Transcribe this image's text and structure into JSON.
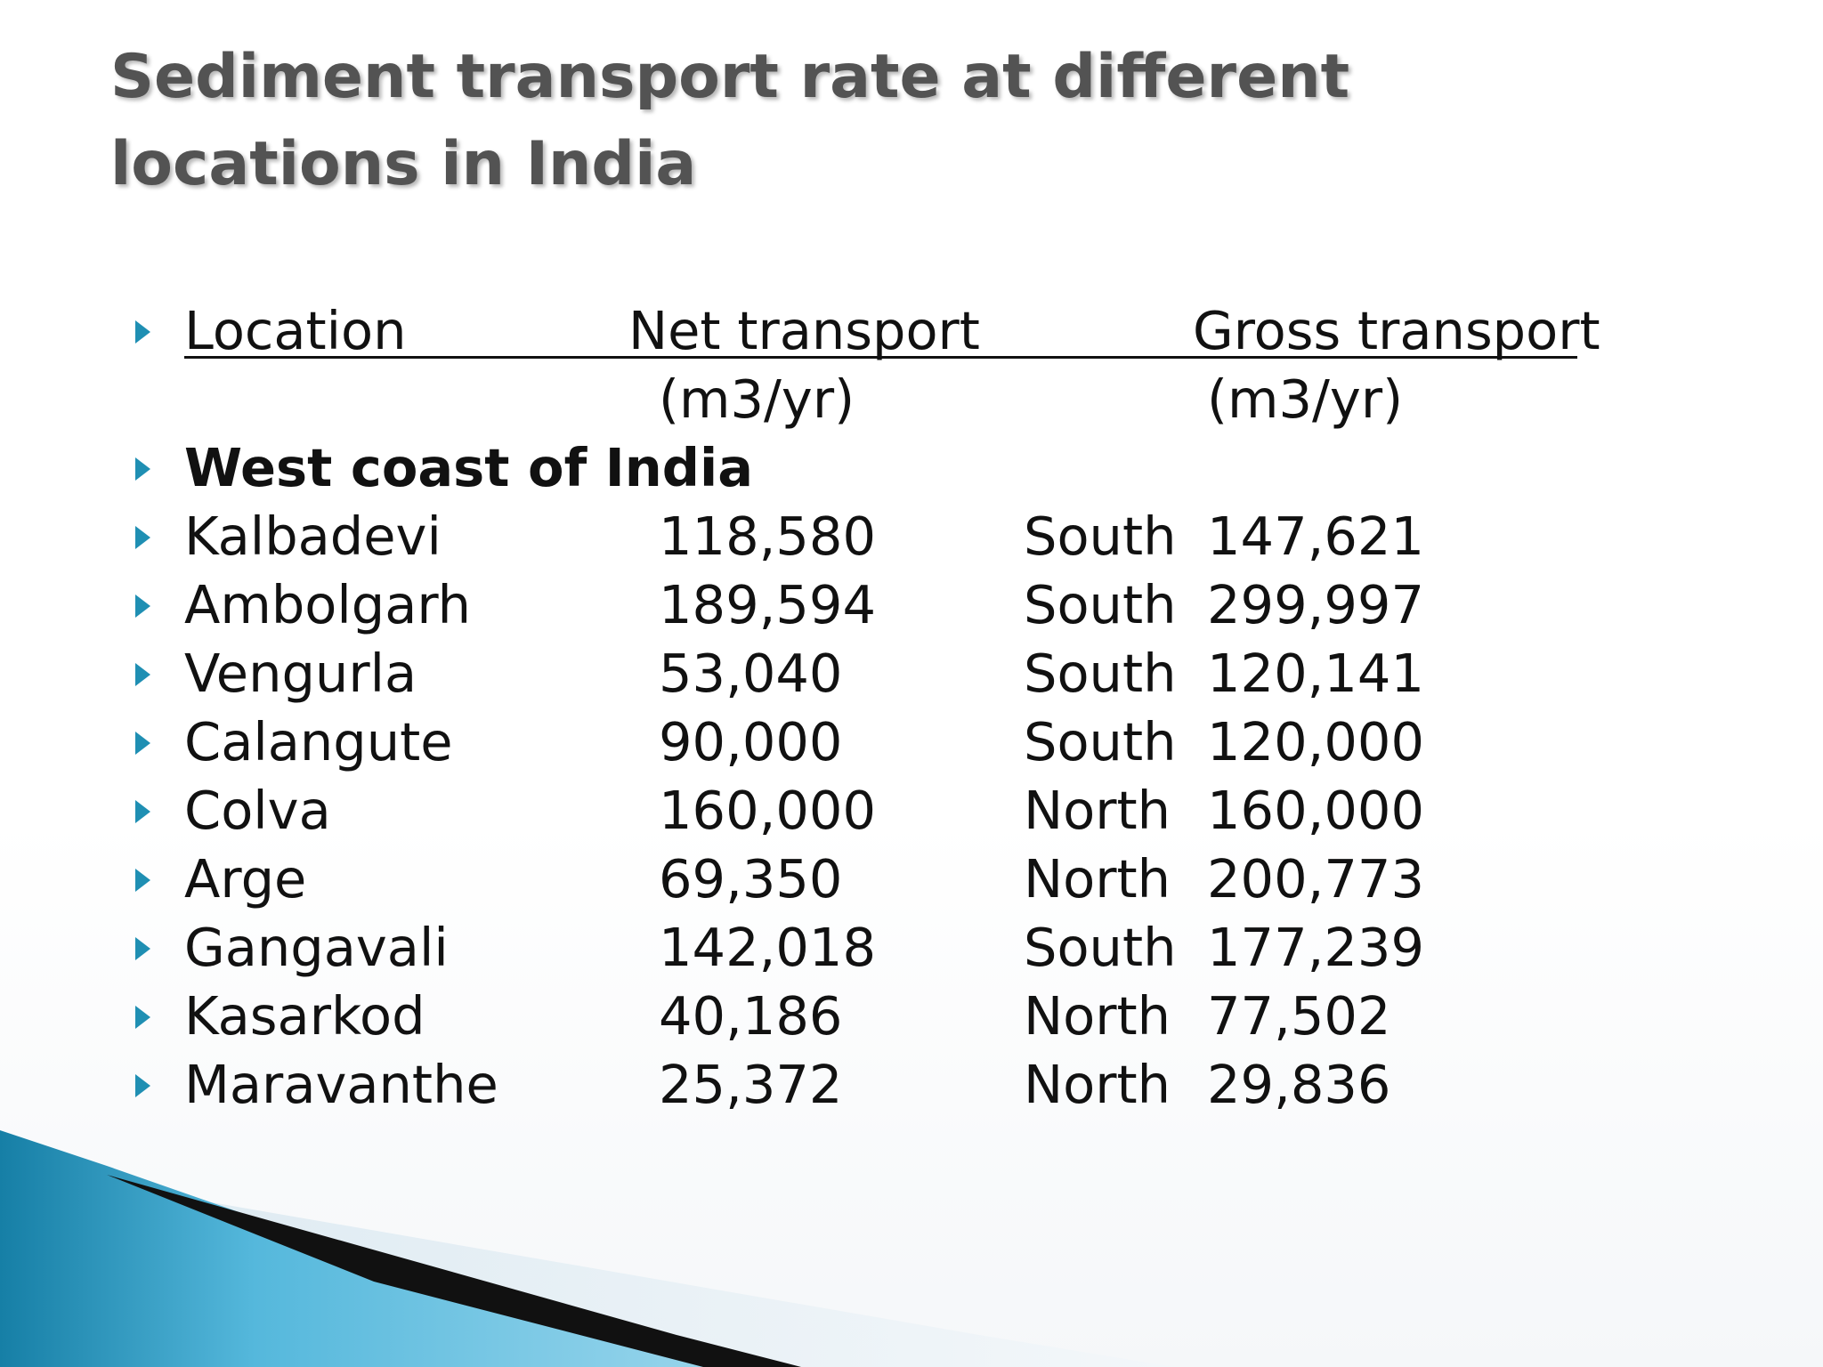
{
  "slide": {
    "title": "Sediment transport rate at different locations in India",
    "header": {
      "location": "Location",
      "net": "Net transport",
      "gross": "Gross transport",
      "net_unit": "(m3/yr)",
      "gross_unit": "(m3/yr)"
    },
    "section": "West coast of India",
    "rows": [
      {
        "location": "Kalbadevi",
        "net": "118,580",
        "direction": "South",
        "gross": "147,621"
      },
      {
        "location": "Ambolgarh",
        "net": "189,594",
        "direction": "South",
        "gross": "299,997"
      },
      {
        "location": "Vengurla",
        "net": "53,040",
        "direction": "South",
        "gross": "120,141"
      },
      {
        "location": "Calangute",
        "net": "90,000",
        "direction": "South",
        "gross": "120,000"
      },
      {
        "location": "Colva",
        "net": "160,000",
        "direction": "North",
        "gross": "160,000"
      },
      {
        "location": "Arge",
        "net": "69,350",
        "direction": "North",
        "gross": "200,773"
      },
      {
        "location": "Gangavali",
        "net": "142,018",
        "direction": "South",
        "gross": "177,239"
      },
      {
        "location": "Kasarkod",
        "net": "40,186",
        "direction": "North",
        "gross": "77,502"
      },
      {
        "location": "Maravanthe",
        "net": "25,372",
        "direction": "North",
        "gross": "29,836"
      }
    ]
  },
  "colors": {
    "bullet": "#1f8fb3",
    "title": "#535353",
    "accent_blue": "#1f8fb3",
    "accent_light": "#8fd2ea",
    "accent_dark": "#111111"
  }
}
